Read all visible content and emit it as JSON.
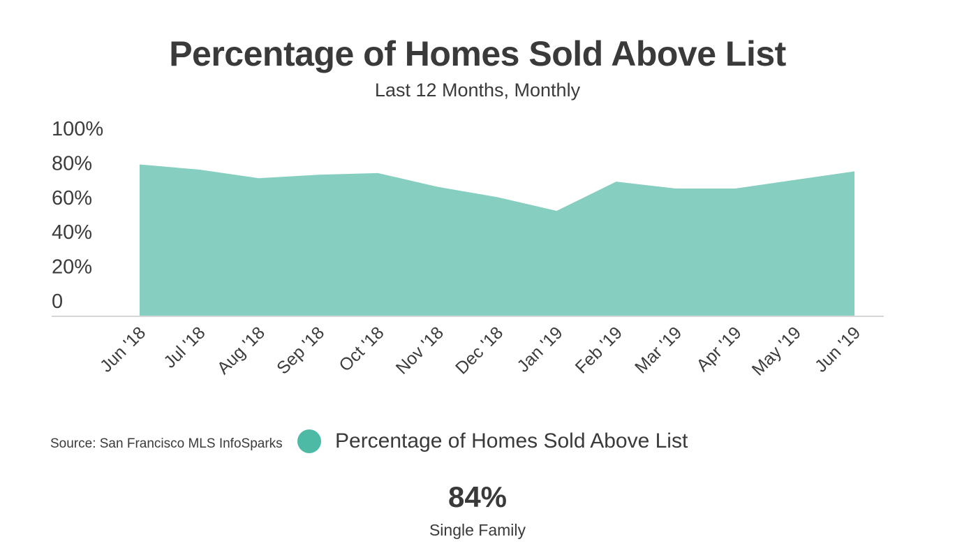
{
  "chart_data": {
    "type": "area",
    "title": "Percentage of Homes Sold Above List",
    "subtitle": "Last 12 Months, Monthly",
    "categories": [
      "Jun '18",
      "Jul '18",
      "Aug '18",
      "Sep '18",
      "Oct '18",
      "Nov '18",
      "Dec '18",
      "Jan '19",
      "Feb '19",
      "Mar '19",
      "Apr '19",
      "May '19",
      "Jun '19"
    ],
    "series": [
      {
        "name": "Percentage of Homes Sold Above List",
        "values": [
          88,
          85,
          80,
          82,
          83,
          75,
          69,
          61,
          78,
          74,
          74,
          79,
          84
        ],
        "color": "#86cfc0"
      }
    ],
    "yticks": [
      "0",
      "20%",
      "40%",
      "60%",
      "80%",
      "100%"
    ],
    "ylim": [
      0,
      100
    ],
    "grid": false,
    "legend_position": "bottom"
  },
  "source": "Source:  San Francisco MLS InfoSparks",
  "legend": {
    "label": "Percentage of Homes Sold Above List",
    "dot_color": "#4dbaa6"
  },
  "stat": {
    "value": "84%",
    "label": "Single Family"
  }
}
